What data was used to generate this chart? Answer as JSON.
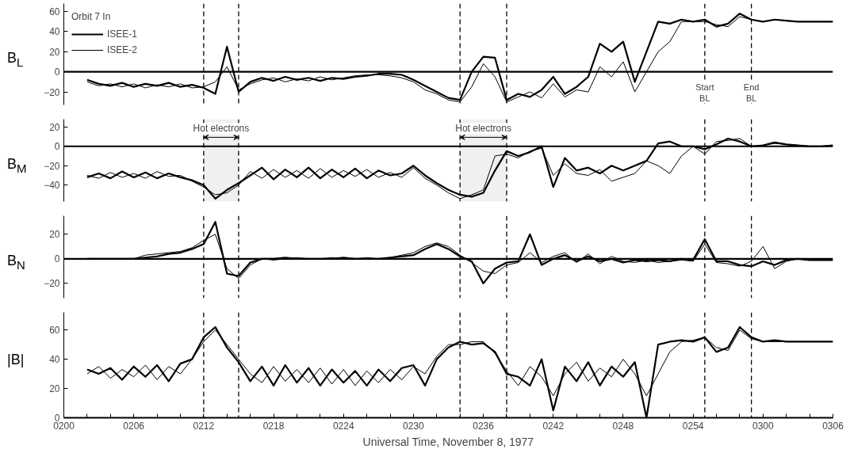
{
  "chart_data": [
    {
      "type": "line",
      "ylabel": "B$_{L}$",
      "legend": "top left",
      "legend_title": "Orbit 7 In",
      "tick_labels": "y",
      "grid": false,
      "xlim": [
        "1977-11-08T02:00",
        "1977-11-08T03:06"
      ],
      "ylim": [
        -33,
        68
      ],
      "yticks": [
        -20,
        0,
        20,
        40,
        60
      ],
      "x": [
        "1977-11-08T02:02",
        "1977-11-08T02:03",
        "1977-11-08T02:04",
        "1977-11-08T02:05",
        "1977-11-08T02:06",
        "1977-11-08T02:07",
        "1977-11-08T02:08",
        "1977-11-08T02:09",
        "1977-11-08T02:10",
        "1977-11-08T02:11",
        "1977-11-08T02:12",
        "1977-11-08T02:13",
        "1977-11-08T02:14",
        "1977-11-08T02:15",
        "1977-11-08T02:16",
        "1977-11-08T02:17",
        "1977-11-08T02:18",
        "1977-11-08T02:19",
        "1977-11-08T02:20",
        "1977-11-08T02:21",
        "1977-11-08T02:22",
        "1977-11-08T02:23",
        "1977-11-08T02:24",
        "1977-11-08T02:25",
        "1977-11-08T02:26",
        "1977-11-08T02:27",
        "1977-11-08T02:28",
        "1977-11-08T02:29",
        "1977-11-08T02:30",
        "1977-11-08T02:31",
        "1977-11-08T02:32",
        "1977-11-08T02:33",
        "1977-11-08T02:34",
        "1977-11-08T02:35",
        "1977-11-08T02:36",
        "1977-11-08T02:37",
        "1977-11-08T02:38",
        "1977-11-08T02:39",
        "1977-11-08T02:40",
        "1977-11-08T02:41",
        "1977-11-08T02:42",
        "1977-11-08T02:43",
        "1977-11-08T02:44",
        "1977-11-08T02:45",
        "1977-11-08T02:46",
        "1977-11-08T02:47",
        "1977-11-08T02:48",
        "1977-11-08T02:49",
        "1977-11-08T02:50",
        "1977-11-08T02:51",
        "1977-11-08T02:52",
        "1977-11-08T02:53",
        "1977-11-08T02:54",
        "1977-11-08T02:55",
        "1977-11-08T02:56",
        "1977-11-08T02:57",
        "1977-11-08T02:58",
        "1977-11-08T02:59",
        "1977-11-08T03:00",
        "1977-11-08T03:01",
        "1977-11-08T03:02",
        "1977-11-08T03:03",
        "1977-11-08T03:04",
        "1977-11-08T03:05",
        "1977-11-08T03:06"
      ],
      "series": [
        {
          "name": "ISEE-1",
          "color": "#000000",
          "values": [
            -8,
            -12,
            -14,
            -11,
            -15,
            -12,
            -14,
            -11,
            -15,
            -13,
            -16,
            -22,
            25,
            -20,
            -10,
            -6,
            -9,
            -5,
            -8,
            -6,
            -9,
            -6,
            -7,
            -5,
            -4,
            -2,
            -2,
            -3,
            -8,
            -14,
            -20,
            -26,
            -28,
            0,
            15,
            14,
            -28,
            -22,
            -25,
            -18,
            -5,
            -22,
            -15,
            -5,
            28,
            20,
            30,
            -10,
            20,
            50,
            48,
            52,
            50,
            52,
            45,
            48,
            58,
            52,
            50,
            52,
            51,
            50,
            50,
            50,
            50
          ]
        },
        {
          "name": "ISEE-2",
          "color": "#000000",
          "values": [
            -10,
            -14,
            -12,
            -15,
            -12,
            -16,
            -13,
            -15,
            -12,
            -16,
            -15,
            -10,
            5,
            -18,
            -12,
            -8,
            -6,
            -10,
            -7,
            -9,
            -5,
            -8,
            -6,
            -4,
            -3,
            -3,
            -4,
            -6,
            -10,
            -18,
            -22,
            -28,
            -30,
            -15,
            8,
            -5,
            -30,
            -25,
            -20,
            -26,
            -12,
            -25,
            -18,
            -20,
            5,
            -5,
            10,
            -20,
            0,
            20,
            30,
            50,
            50,
            50,
            47,
            45,
            55,
            52,
            50,
            52,
            51,
            50,
            50,
            50,
            50
          ]
        }
      ],
      "ref_lines": [
        {
          "axis": "y",
          "value": 0,
          "line_style": "solid"
        },
        {
          "axis": "x",
          "value": "1977-11-08T02:12",
          "line_style": "dashed"
        },
        {
          "axis": "x",
          "value": "1977-11-08T02:15",
          "line_style": "dashed"
        },
        {
          "axis": "x",
          "value": "1977-11-08T02:34",
          "line_style": "dashed"
        },
        {
          "axis": "x",
          "value": "1977-11-08T02:38",
          "line_style": "dashed"
        },
        {
          "axis": "x",
          "value": "1977-11-08T02:55",
          "line_style": "dashed",
          "label": "Start BL"
        },
        {
          "axis": "x",
          "value": "1977-11-08T02:59",
          "line_style": "dashed",
          "label": "End BL"
        }
      ]
    },
    {
      "type": "line",
      "ylabel": "B$_{M}$",
      "tick_labels": "y",
      "grid": false,
      "xlim": [
        "1977-11-08T02:00",
        "1977-11-08T03:06"
      ],
      "ylim": [
        -57,
        28
      ],
      "yticks": [
        -40,
        -20,
        0,
        20
      ],
      "x": [
        "1977-11-08T02:02",
        "1977-11-08T02:03",
        "1977-11-08T02:04",
        "1977-11-08T02:05",
        "1977-11-08T02:06",
        "1977-11-08T02:07",
        "1977-11-08T02:08",
        "1977-11-08T02:09",
        "1977-11-08T02:10",
        "1977-11-08T02:11",
        "1977-11-08T02:12",
        "1977-11-08T02:13",
        "1977-11-08T02:14",
        "1977-11-08T02:15",
        "1977-11-08T02:16",
        "1977-11-08T02:17",
        "1977-11-08T02:18",
        "1977-11-08T02:19",
        "1977-11-08T02:20",
        "1977-11-08T02:21",
        "1977-11-08T02:22",
        "1977-11-08T02:23",
        "1977-11-08T02:24",
        "1977-11-08T02:25",
        "1977-11-08T02:26",
        "1977-11-08T02:27",
        "1977-11-08T02:28",
        "1977-11-08T02:29",
        "1977-11-08T02:30",
        "1977-11-08T02:31",
        "1977-11-08T02:32",
        "1977-11-08T02:33",
        "1977-11-08T02:34",
        "1977-11-08T02:35",
        "1977-11-08T02:36",
        "1977-11-08T02:37",
        "1977-11-08T02:38",
        "1977-11-08T02:39",
        "1977-11-08T02:40",
        "1977-11-08T02:41",
        "1977-11-08T02:42",
        "1977-11-08T02:43",
        "1977-11-08T02:44",
        "1977-11-08T02:45",
        "1977-11-08T02:46",
        "1977-11-08T02:47",
        "1977-11-08T02:48",
        "1977-11-08T02:49",
        "1977-11-08T02:50",
        "1977-11-08T02:51",
        "1977-11-08T02:52",
        "1977-11-08T02:53",
        "1977-11-08T02:54",
        "1977-11-08T02:55",
        "1977-11-08T02:56",
        "1977-11-08T02:57",
        "1977-11-08T02:58",
        "1977-11-08T02:59",
        "1977-11-08T03:00",
        "1977-11-08T03:01",
        "1977-11-08T03:02",
        "1977-11-08T03:03",
        "1977-11-08T03:04",
        "1977-11-08T03:05",
        "1977-11-08T03:06"
      ],
      "series": [
        {
          "color": "#000000",
          "values": [
            -32,
            -28,
            -33,
            -26,
            -32,
            -27,
            -33,
            -28,
            -32,
            -35,
            -40,
            -54,
            -45,
            -38,
            -30,
            -22,
            -34,
            -24,
            -32,
            -22,
            -33,
            -24,
            -32,
            -23,
            -33,
            -25,
            -30,
            -28,
            -20,
            -30,
            -38,
            -45,
            -50,
            -52,
            -48,
            -25,
            -5,
            -10,
            -6,
            0,
            -42,
            -12,
            -25,
            -22,
            -28,
            -20,
            -25,
            -20,
            -15,
            3,
            5,
            0,
            0,
            -3,
            2,
            8,
            5,
            0,
            1,
            4,
            2,
            1,
            0,
            0,
            1
          ]
        },
        {
          "color": "#000000",
          "values": [
            -30,
            -33,
            -27,
            -32,
            -28,
            -33,
            -26,
            -31,
            -30,
            -36,
            -42,
            -50,
            -48,
            -40,
            -26,
            -33,
            -24,
            -32,
            -25,
            -33,
            -23,
            -32,
            -25,
            -31,
            -24,
            -32,
            -27,
            -32,
            -22,
            -33,
            -40,
            -48,
            -54,
            -50,
            -45,
            -10,
            -8,
            -12,
            -5,
            -2,
            -30,
            -18,
            -28,
            -30,
            -24,
            -36,
            -32,
            -28,
            -15,
            -20,
            -28,
            -10,
            0,
            -8,
            5,
            6,
            8,
            0,
            1,
            3,
            2,
            1,
            0,
            0,
            1
          ]
        }
      ],
      "ref_lines": [
        {
          "axis": "y",
          "value": 0,
          "line_style": "solid"
        },
        {
          "axis": "x",
          "value": "1977-11-08T02:12",
          "line_style": "dashed"
        },
        {
          "axis": "x",
          "value": "1977-11-08T02:15",
          "line_style": "dashed"
        },
        {
          "axis": "x",
          "value": "1977-11-08T02:34",
          "line_style": "dashed"
        },
        {
          "axis": "x",
          "value": "1977-11-08T02:38",
          "line_style": "dashed"
        },
        {
          "axis": "x",
          "value": "1977-11-08T02:55",
          "line_style": "dashed"
        },
        {
          "axis": "x",
          "value": "1977-11-08T02:59",
          "line_style": "dashed"
        }
      ],
      "bands": [
        {
          "axis": "x",
          "from": "1977-11-08T02:12",
          "to": "1977-11-08T02:15",
          "label": "Hot electrons"
        },
        {
          "axis": "x",
          "from": "1977-11-08T02:34",
          "to": "1977-11-08T02:38",
          "label": "Hot electrons"
        }
      ]
    },
    {
      "type": "line",
      "ylabel": "B$_{N}$",
      "tick_labels": "y",
      "grid": false,
      "xlim": [
        "1977-11-08T02:00",
        "1977-11-08T03:06"
      ],
      "ylim": [
        -32,
        35
      ],
      "yticks": [
        -20,
        0,
        20
      ],
      "x": [
        "1977-11-08T02:02",
        "1977-11-08T02:03",
        "1977-11-08T02:04",
        "1977-11-08T02:05",
        "1977-11-08T02:06",
        "1977-11-08T02:07",
        "1977-11-08T02:08",
        "1977-11-08T02:09",
        "1977-11-08T02:10",
        "1977-11-08T02:11",
        "1977-11-08T02:12",
        "1977-11-08T02:13",
        "1977-11-08T02:14",
        "1977-11-08T02:15",
        "1977-11-08T02:16",
        "1977-11-08T02:17",
        "1977-11-08T02:18",
        "1977-11-08T02:19",
        "1977-11-08T02:20",
        "1977-11-08T02:21",
        "1977-11-08T02:22",
        "1977-11-08T02:23",
        "1977-11-08T02:24",
        "1977-11-08T02:25",
        "1977-11-08T02:26",
        "1977-11-08T02:27",
        "1977-11-08T02:28",
        "1977-11-08T02:29",
        "1977-11-08T02:30",
        "1977-11-08T02:31",
        "1977-11-08T02:32",
        "1977-11-08T02:33",
        "1977-11-08T02:34",
        "1977-11-08T02:35",
        "1977-11-08T02:36",
        "1977-11-08T02:37",
        "1977-11-08T02:38",
        "1977-11-08T02:39",
        "1977-11-08T02:40",
        "1977-11-08T02:41",
        "1977-11-08T02:42",
        "1977-11-08T02:43",
        "1977-11-08T02:44",
        "1977-11-08T02:45",
        "1977-11-08T02:46",
        "1977-11-08T02:47",
        "1977-11-08T02:48",
        "1977-11-08T02:49",
        "1977-11-08T02:50",
        "1977-11-08T02:51",
        "1977-11-08T02:52",
        "1977-11-08T02:53",
        "1977-11-08T02:54",
        "1977-11-08T02:55",
        "1977-11-08T02:56",
        "1977-11-08T02:57",
        "1977-11-08T02:58",
        "1977-11-08T02:59",
        "1977-11-08T03:00",
        "1977-11-08T03:01",
        "1977-11-08T03:02",
        "1977-11-08T03:03",
        "1977-11-08T03:04",
        "1977-11-08T03:05",
        "1977-11-08T03:06"
      ],
      "series": [
        {
          "color": "#000000",
          "values": [
            0,
            0,
            0,
            0,
            0,
            1,
            2,
            4,
            5,
            8,
            12,
            30,
            -12,
            -14,
            -3,
            0,
            0,
            1,
            0,
            0,
            0,
            0,
            1,
            0,
            0,
            0,
            1,
            2,
            3,
            8,
            12,
            8,
            2,
            -2,
            -20,
            -8,
            -3,
            -2,
            20,
            -5,
            0,
            3,
            -2,
            2,
            -2,
            0,
            -3,
            -1,
            -2,
            -1,
            -2,
            0,
            -1,
            16,
            -2,
            -2,
            -5,
            -6,
            -2,
            -5,
            -1,
            0,
            -1,
            -1,
            -1
          ]
        },
        {
          "color": "#000000",
          "values": [
            0,
            0,
            0,
            0,
            0,
            3,
            4,
            5,
            6,
            9,
            15,
            20,
            -8,
            -16,
            -5,
            0,
            -1,
            0,
            1,
            0,
            0,
            1,
            0,
            0,
            1,
            0,
            1,
            3,
            5,
            10,
            13,
            10,
            3,
            -3,
            -10,
            -12,
            -5,
            -3,
            5,
            -3,
            2,
            5,
            -3,
            4,
            -4,
            2,
            -2,
            -3,
            -1,
            -3,
            -2,
            -1,
            -2,
            12,
            -3,
            -4,
            -6,
            -2,
            10,
            -8,
            -2,
            0,
            -1,
            -1,
            -1
          ]
        }
      ],
      "ref_lines": [
        {
          "axis": "y",
          "value": 0,
          "line_style": "solid"
        },
        {
          "axis": "x",
          "value": "1977-11-08T02:12",
          "line_style": "dashed"
        },
        {
          "axis": "x",
          "value": "1977-11-08T02:15",
          "line_style": "dashed"
        },
        {
          "axis": "x",
          "value": "1977-11-08T02:34",
          "line_style": "dashed"
        },
        {
          "axis": "x",
          "value": "1977-11-08T02:38",
          "line_style": "dashed"
        },
        {
          "axis": "x",
          "value": "1977-11-08T02:55",
          "line_style": "dashed"
        },
        {
          "axis": "x",
          "value": "1977-11-08T02:59",
          "line_style": "dashed"
        }
      ]
    },
    {
      "type": "line",
      "ylabel": "|B|",
      "xlabel": "Universal Time, November 8, 1977",
      "grid": false,
      "xlim": [
        "1977-11-08T02:00",
        "1977-11-08T03:06"
      ],
      "ylim": [
        0,
        72
      ],
      "yticks": [
        0,
        20,
        40,
        60
      ],
      "xticks": [
        {
          "value": "1977-11-08T02:00",
          "label": "0200"
        },
        {
          "value": "1977-11-08T02:02",
          "label": null
        },
        {
          "value": "1977-11-08T02:04",
          "label": null
        },
        {
          "value": "1977-11-08T02:06",
          "label": "0206"
        },
        {
          "value": "1977-11-08T02:08",
          "label": null
        },
        {
          "value": "1977-11-08T02:10",
          "label": null
        },
        {
          "value": "1977-11-08T02:12",
          "label": "0212"
        },
        {
          "value": "1977-11-08T02:14",
          "label": null
        },
        {
          "value": "1977-11-08T02:16",
          "label": null
        },
        {
          "value": "1977-11-08T02:18",
          "label": "0218"
        },
        {
          "value": "1977-11-08T02:20",
          "label": null
        },
        {
          "value": "1977-11-08T02:22",
          "label": null
        },
        {
          "value": "1977-11-08T02:24",
          "label": "0224"
        },
        {
          "value": "1977-11-08T02:26",
          "label": null
        },
        {
          "value": "1977-11-08T02:28",
          "label": null
        },
        {
          "value": "1977-11-08T02:30",
          "label": "0230"
        },
        {
          "value": "1977-11-08T02:32",
          "label": null
        },
        {
          "value": "1977-11-08T02:34",
          "label": null
        },
        {
          "value": "1977-11-08T02:36",
          "label": "0236"
        },
        {
          "value": "1977-11-08T02:38",
          "label": null
        },
        {
          "value": "1977-11-08T02:40",
          "label": null
        },
        {
          "value": "1977-11-08T02:42",
          "label": "0242"
        },
        {
          "value": "1977-11-08T02:44",
          "label": null
        },
        {
          "value": "1977-11-08T02:46",
          "label": null
        },
        {
          "value": "1977-11-08T02:48",
          "label": "0248"
        },
        {
          "value": "1977-11-08T02:50",
          "label": null
        },
        {
          "value": "1977-11-08T02:52",
          "label": null
        },
        {
          "value": "1977-11-08T02:54",
          "label": "0254"
        },
        {
          "value": "1977-11-08T02:56",
          "label": null
        },
        {
          "value": "1977-11-08T02:58",
          "label": null
        },
        {
          "value": "1977-11-08T03:00",
          "label": "0300"
        },
        {
          "value": "1977-11-08T03:02",
          "label": null
        },
        {
          "value": "1977-11-08T03:04",
          "label": null
        },
        {
          "value": "1977-11-08T03:06",
          "label": "0306"
        }
      ],
      "x": [
        "1977-11-08T02:02",
        "1977-11-08T02:03",
        "1977-11-08T02:04",
        "1977-11-08T02:05",
        "1977-11-08T02:06",
        "1977-11-08T02:07",
        "1977-11-08T02:08",
        "1977-11-08T02:09",
        "1977-11-08T02:10",
        "1977-11-08T02:11",
        "1977-11-08T02:12",
        "1977-11-08T02:13",
        "1977-11-08T02:14",
        "1977-11-08T02:15",
        "1977-11-08T02:16",
        "1977-11-08T02:17",
        "1977-11-08T02:18",
        "1977-11-08T02:19",
        "1977-11-08T02:20",
        "1977-11-08T02:21",
        "1977-11-08T02:22",
        "1977-11-08T02:23",
        "1977-11-08T02:24",
        "1977-11-08T02:25",
        "1977-11-08T02:26",
        "1977-11-08T02:27",
        "1977-11-08T02:28",
        "1977-11-08T02:29",
        "1977-11-08T02:30",
        "1977-11-08T02:31",
        "1977-11-08T02:32",
        "1977-11-08T02:33",
        "1977-11-08T02:34",
        "1977-11-08T02:35",
        "1977-11-08T02:36",
        "1977-11-08T02:37",
        "1977-11-08T02:38",
        "1977-11-08T02:39",
        "1977-11-08T02:40",
        "1977-11-08T02:41",
        "1977-11-08T02:42",
        "1977-11-08T02:43",
        "1977-11-08T02:44",
        "1977-11-08T02:45",
        "1977-11-08T02:46",
        "1977-11-08T02:47",
        "1977-11-08T02:48",
        "1977-11-08T02:49",
        "1977-11-08T02:50",
        "1977-11-08T02:51",
        "1977-11-08T02:52",
        "1977-11-08T02:53",
        "1977-11-08T02:54",
        "1977-11-08T02:55",
        "1977-11-08T02:56",
        "1977-11-08T02:57",
        "1977-11-08T02:58",
        "1977-11-08T02:59",
        "1977-11-08T03:00",
        "1977-11-08T03:01",
        "1977-11-08T03:02",
        "1977-11-08T03:03",
        "1977-11-08T03:04",
        "1977-11-08T03:05",
        "1977-11-08T03:06"
      ],
      "series": [
        {
          "color": "#000000",
          "values": [
            33,
            30,
            34,
            26,
            35,
            28,
            36,
            25,
            37,
            40,
            55,
            62,
            48,
            38,
            25,
            35,
            22,
            36,
            24,
            34,
            22,
            33,
            24,
            32,
            22,
            33,
            25,
            34,
            36,
            22,
            40,
            48,
            52,
            50,
            51,
            45,
            30,
            28,
            22,
            40,
            5,
            35,
            25,
            38,
            22,
            35,
            28,
            38,
            0,
            50,
            52,
            53,
            52,
            55,
            45,
            48,
            62,
            55,
            52,
            53,
            52,
            52,
            52,
            52,
            52
          ]
        },
        {
          "color": "#000000",
          "values": [
            30,
            35,
            27,
            33,
            28,
            36,
            26,
            35,
            30,
            40,
            52,
            60,
            50,
            40,
            30,
            24,
            35,
            25,
            33,
            24,
            34,
            23,
            33,
            22,
            32,
            24,
            33,
            26,
            35,
            30,
            42,
            50,
            50,
            52,
            52,
            44,
            32,
            22,
            35,
            28,
            15,
            30,
            38,
            25,
            34,
            28,
            40,
            30,
            15,
            30,
            45,
            52,
            53,
            55,
            48,
            46,
            60,
            54,
            52,
            52,
            52,
            52,
            52,
            52,
            52
          ]
        }
      ],
      "ref_lines": [
        {
          "axis": "x",
          "value": "1977-11-08T02:12",
          "line_style": "dashed"
        },
        {
          "axis": "x",
          "value": "1977-11-08T02:15",
          "line_style": "dashed"
        },
        {
          "axis": "x",
          "value": "1977-11-08T02:34",
          "line_style": "dashed"
        },
        {
          "axis": "x",
          "value": "1977-11-08T02:38",
          "line_style": "dashed"
        },
        {
          "axis": "x",
          "value": "1977-11-08T02:55",
          "line_style": "dashed"
        },
        {
          "axis": "x",
          "value": "1977-11-08T02:59",
          "line_style": "dashed"
        }
      ]
    }
  ]
}
